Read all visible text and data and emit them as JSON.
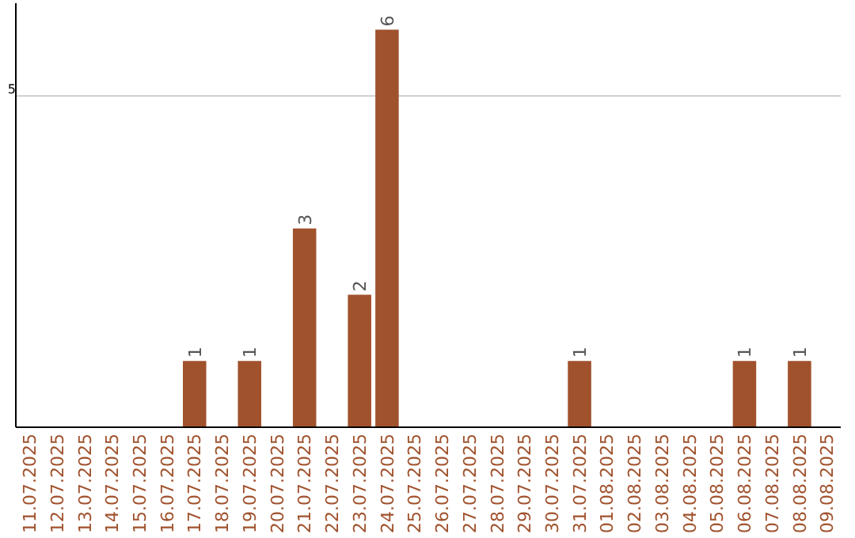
{
  "chart_data": {
    "type": "bar",
    "categories": [
      "11.07.2025",
      "12.07.2025",
      "13.07.2025",
      "14.07.2025",
      "15.07.2025",
      "16.07.2025",
      "17.07.2025",
      "18.07.2025",
      "19.07.2025",
      "20.07.2025",
      "21.07.2025",
      "22.07.2025",
      "23.07.2025",
      "24.07.2025",
      "25.07.2025",
      "26.07.2025",
      "27.07.2025",
      "28.07.2025",
      "29.07.2025",
      "30.07.2025",
      "31.07.2025",
      "01.08.2025",
      "02.08.2025",
      "03.08.2025",
      "04.08.2025",
      "05.08.2025",
      "06.08.2025",
      "07.08.2025",
      "08.08.2025",
      "09.08.2025"
    ],
    "values": [
      0,
      0,
      0,
      0,
      0,
      0,
      1,
      0,
      1,
      0,
      3,
      0,
      2,
      6,
      0,
      0,
      0,
      0,
      0,
      0,
      1,
      0,
      0,
      0,
      0,
      0,
      1,
      0,
      1,
      0
    ],
    "value_labels": [
      null,
      null,
      null,
      null,
      null,
      null,
      "1",
      null,
      "1",
      null,
      "3",
      null,
      "2",
      "6",
      null,
      null,
      null,
      null,
      null,
      null,
      "1",
      null,
      null,
      null,
      null,
      null,
      "1",
      null,
      "1",
      null
    ],
    "color": "#a0522d",
    "ylim": [
      0,
      6.4
    ],
    "yticks": [
      5
    ],
    "grid": "y"
  }
}
